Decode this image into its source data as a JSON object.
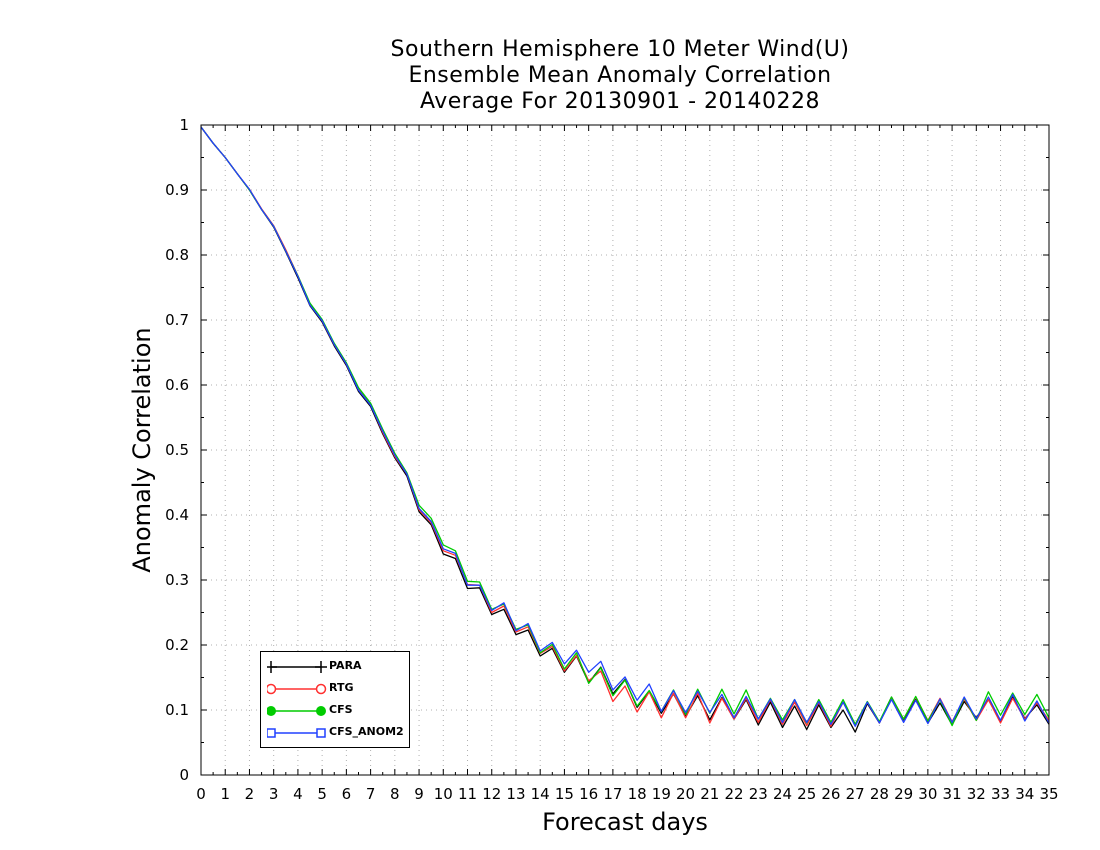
{
  "chart_data": {
    "type": "line",
    "title": [
      "Southern Hemisphere 10 Meter Wind(U)",
      "Ensemble Mean Anomaly Correlation",
      "Average For 20130901 - 20140228"
    ],
    "xlabel": "Forecast days",
    "ylabel": "Anomaly Correlation",
    "xlim": [
      0,
      35
    ],
    "ylim": [
      0,
      1
    ],
    "x_ticks": [
      "0",
      "1",
      "2",
      "3",
      "4",
      "5",
      "6",
      "7",
      "8",
      "9",
      "10",
      "11",
      "12",
      "13",
      "14",
      "15",
      "16",
      "17",
      "18",
      "19",
      "20",
      "21",
      "22",
      "23",
      "24",
      "25",
      "26",
      "27",
      "28",
      "29",
      "30",
      "31",
      "32",
      "33",
      "34",
      "35"
    ],
    "y_ticks": [
      "0",
      "0.1",
      "0.2",
      "0.3",
      "0.4",
      "0.5",
      "0.6",
      "0.7",
      "0.8",
      "0.9",
      "1"
    ],
    "grid": true,
    "legend_position": "bottom-left",
    "x": [
      0,
      0.5,
      1,
      1.5,
      2,
      2.5,
      3,
      3.5,
      4,
      4.5,
      5,
      5.5,
      6,
      6.5,
      7,
      7.5,
      8,
      8.5,
      9,
      9.5,
      10,
      10.5,
      11,
      11.5,
      12,
      12.5,
      13,
      13.5,
      14,
      14.5,
      15,
      15.5,
      16,
      16.5,
      17,
      17.5,
      18,
      18.5,
      19,
      19.5,
      20,
      20.5,
      21,
      21.5,
      22,
      22.5,
      23,
      23.5,
      24,
      24.5,
      25,
      25.5,
      26,
      26.5,
      27,
      27.5,
      28,
      28.5,
      29,
      29.5,
      30,
      30.5,
      31,
      31.5,
      32,
      32.5,
      33,
      33.5,
      34,
      34.5,
      35
    ],
    "series": [
      {
        "name": "PARA",
        "color": "#000000",
        "marker": "plus",
        "values": [
          0.997,
          0.972,
          0.95,
          0.925,
          0.9,
          0.87,
          0.843,
          0.805,
          0.765,
          0.722,
          0.697,
          0.66,
          0.63,
          0.59,
          0.567,
          0.525,
          0.488,
          0.46,
          0.405,
          0.385,
          0.34,
          0.333,
          0.287,
          0.288,
          0.247,
          0.255,
          0.216,
          0.223,
          0.183,
          0.195,
          0.158,
          0.183,
          0.142,
          0.166,
          0.125,
          0.147,
          0.104,
          0.129,
          0.095,
          0.125,
          0.09,
          0.122,
          0.085,
          0.119,
          0.086,
          0.116,
          0.077,
          0.112,
          0.073,
          0.106,
          0.07,
          0.108,
          0.073,
          0.1,
          0.066,
          0.11,
          0.08,
          0.12,
          0.085,
          0.116,
          0.08,
          0.111,
          0.077,
          0.113,
          0.088,
          0.116,
          0.083,
          0.12,
          0.087,
          0.108,
          0.078
        ]
      },
      {
        "name": "RTG",
        "color": "#ff3030",
        "marker": "circle",
        "values": [
          0.997,
          0.972,
          0.95,
          0.925,
          0.901,
          0.871,
          0.845,
          0.808,
          0.768,
          0.724,
          0.699,
          0.662,
          0.632,
          0.593,
          0.57,
          0.527,
          0.49,
          0.463,
          0.408,
          0.388,
          0.345,
          0.338,
          0.293,
          0.292,
          0.25,
          0.26,
          0.22,
          0.228,
          0.187,
          0.198,
          0.16,
          0.184,
          0.145,
          0.16,
          0.113,
          0.137,
          0.097,
          0.128,
          0.088,
          0.126,
          0.088,
          0.126,
          0.08,
          0.118,
          0.086,
          0.118,
          0.081,
          0.116,
          0.078,
          0.112,
          0.076,
          0.112,
          0.075,
          0.112,
          0.078,
          0.112,
          0.08,
          0.118,
          0.086,
          0.12,
          0.084,
          0.118,
          0.082,
          0.117,
          0.084,
          0.116,
          0.08,
          0.118,
          0.086,
          0.111,
          0.084
        ]
      },
      {
        "name": "CFS",
        "color": "#00cc00",
        "marker": "filled-circle",
        "values": [
          0.997,
          0.972,
          0.95,
          0.925,
          0.9,
          0.87,
          0.844,
          0.806,
          0.768,
          0.726,
          0.701,
          0.664,
          0.634,
          0.596,
          0.572,
          0.532,
          0.495,
          0.465,
          0.415,
          0.395,
          0.354,
          0.345,
          0.298,
          0.297,
          0.255,
          0.263,
          0.224,
          0.231,
          0.188,
          0.201,
          0.163,
          0.188,
          0.141,
          0.165,
          0.122,
          0.146,
          0.106,
          0.13,
          0.098,
          0.131,
          0.093,
          0.132,
          0.095,
          0.132,
          0.094,
          0.131,
          0.086,
          0.118,
          0.085,
          0.116,
          0.08,
          0.116,
          0.081,
          0.116,
          0.078,
          0.113,
          0.082,
          0.12,
          0.086,
          0.121,
          0.083,
          0.116,
          0.076,
          0.119,
          0.084,
          0.128,
          0.092,
          0.126,
          0.093,
          0.124,
          0.088
        ]
      },
      {
        "name": "CFS_ANOM2",
        "color": "#2040ff",
        "marker": "square",
        "values": [
          0.997,
          0.972,
          0.95,
          0.925,
          0.901,
          0.87,
          0.844,
          0.806,
          0.767,
          0.723,
          0.699,
          0.662,
          0.632,
          0.592,
          0.569,
          0.529,
          0.492,
          0.463,
          0.41,
          0.39,
          0.348,
          0.341,
          0.292,
          0.292,
          0.253,
          0.265,
          0.222,
          0.233,
          0.191,
          0.204,
          0.171,
          0.192,
          0.158,
          0.175,
          0.131,
          0.151,
          0.115,
          0.14,
          0.098,
          0.13,
          0.096,
          0.129,
          0.096,
          0.124,
          0.088,
          0.121,
          0.086,
          0.117,
          0.081,
          0.116,
          0.081,
          0.113,
          0.078,
          0.112,
          0.075,
          0.112,
          0.08,
          0.116,
          0.081,
          0.115,
          0.079,
          0.117,
          0.081,
          0.12,
          0.086,
          0.12,
          0.084,
          0.124,
          0.083,
          0.114,
          0.08
        ]
      }
    ]
  }
}
